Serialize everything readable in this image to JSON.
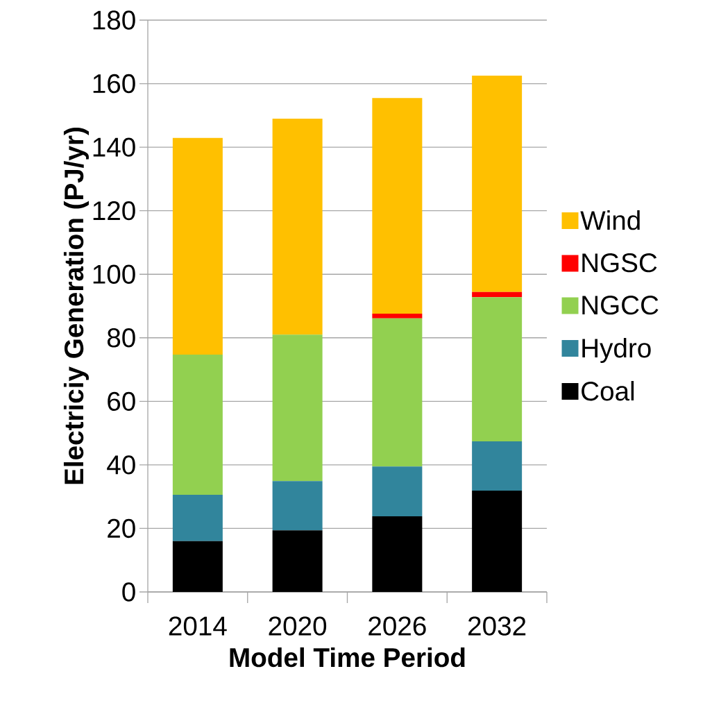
{
  "chart_data": {
    "type": "bar",
    "stacked": true,
    "xlabel": "Model Time Period",
    "ylabel": "Electriciy Generation (PJ/yr)",
    "categories": [
      "2014",
      "2020",
      "2026",
      "2032"
    ],
    "series": [
      {
        "name": "Coal",
        "color": "#000000",
        "values": [
          16,
          19.4,
          23.8,
          31.9
        ]
      },
      {
        "name": "Hydro",
        "color": "#31859c",
        "values": [
          14.6,
          15.5,
          15.7,
          15.5
        ]
      },
      {
        "name": "NGCC",
        "color": "#92d050",
        "values": [
          44.1,
          46.1,
          46.6,
          45.4
        ]
      },
      {
        "name": "NGSC",
        "color": "#ff0000",
        "values": [
          0,
          0,
          1.5,
          1.6
        ]
      },
      {
        "name": "Wind",
        "color": "#ffc000",
        "values": [
          68.2,
          68,
          67.9,
          68.1
        ]
      }
    ],
    "ylim": [
      0,
      180
    ],
    "yticks": [
      0,
      20,
      40,
      60,
      80,
      100,
      120,
      140,
      160,
      180
    ],
    "grid": "y",
    "legend": "right"
  }
}
